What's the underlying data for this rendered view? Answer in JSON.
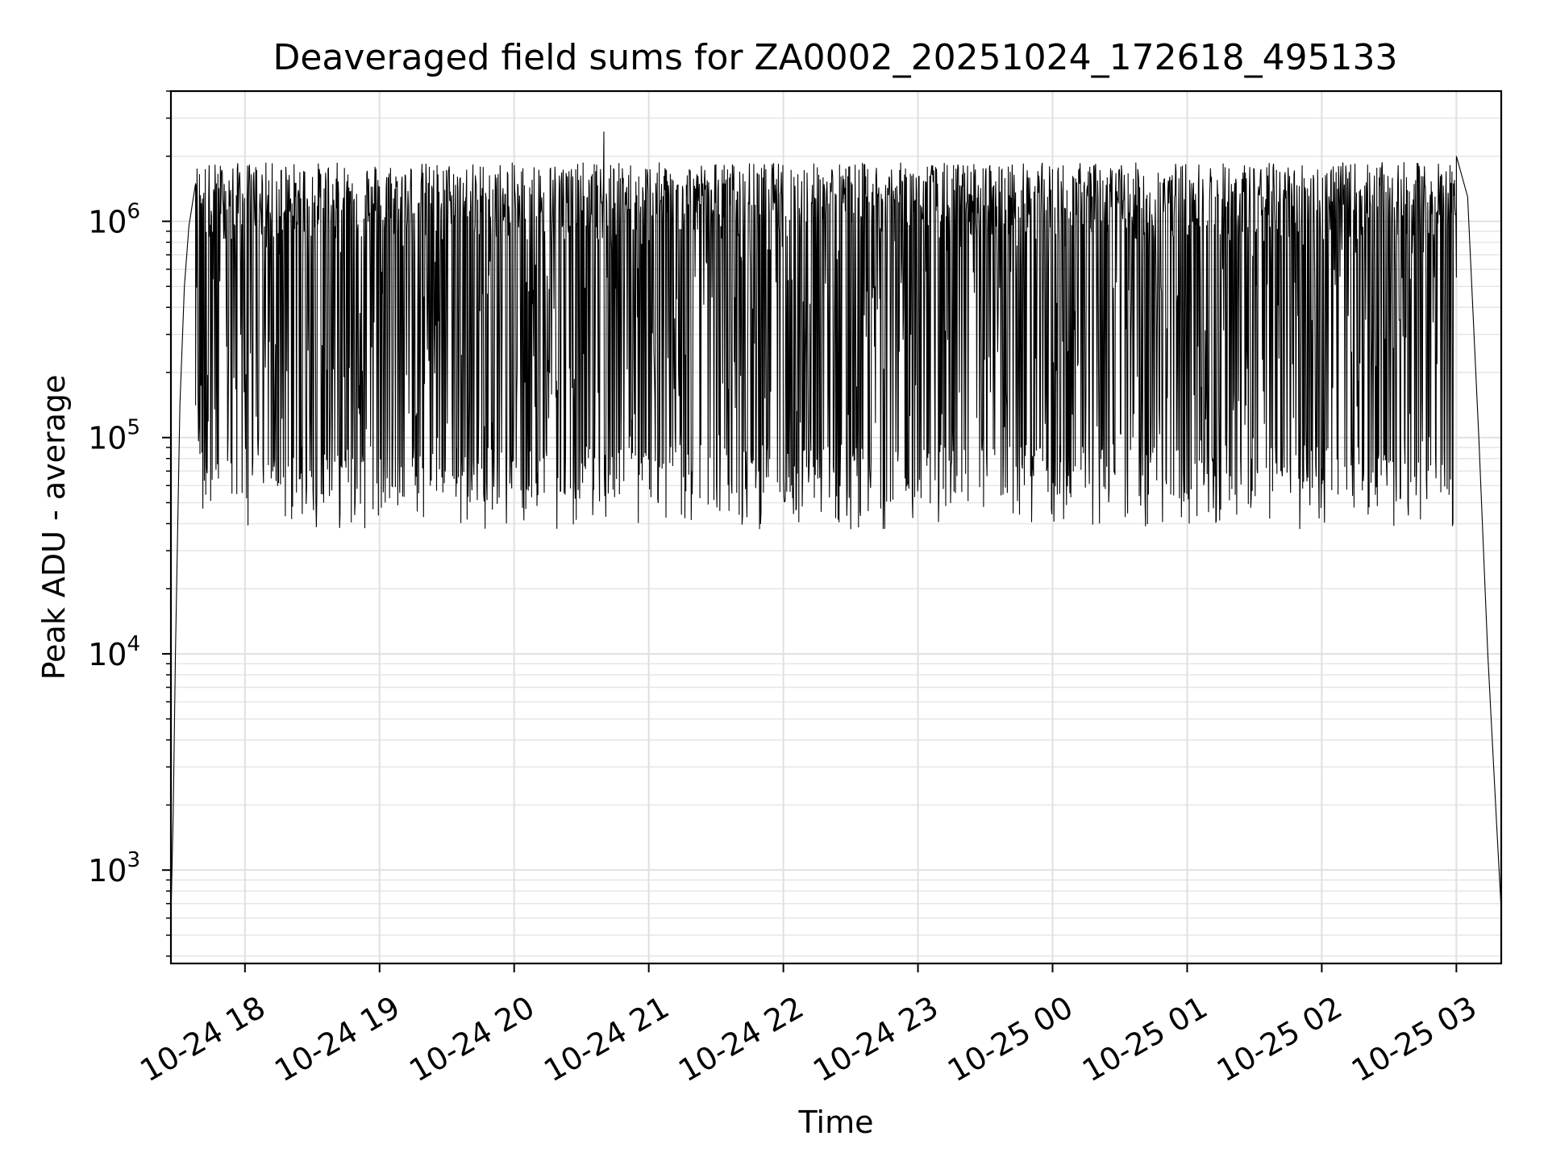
{
  "chart_data": {
    "type": "line",
    "title": "Deaveraged field sums for ZA0002_20251024_172618_495133",
    "xlabel": "Time",
    "ylabel": "Peak ADU - average",
    "yscale": "log",
    "ylim": [
      370,
      4000000
    ],
    "xlim": [
      "2025-10-24 17:27",
      "2025-10-25 03:20"
    ],
    "grid": true,
    "line_color": "#000000",
    "x_ticks": [
      {
        "label": "10-24 18",
        "value": "2025-10-24 18:00"
      },
      {
        "label": "10-24 19",
        "value": "2025-10-24 19:00"
      },
      {
        "label": "10-24 20",
        "value": "2025-10-24 20:00"
      },
      {
        "label": "10-24 21",
        "value": "2025-10-24 21:00"
      },
      {
        "label": "10-24 22",
        "value": "2025-10-24 22:00"
      },
      {
        "label": "10-24 23",
        "value": "2025-10-24 23:00"
      },
      {
        "label": "10-25 00",
        "value": "2025-10-25 00:00"
      },
      {
        "label": "10-25 01",
        "value": "2025-10-25 01:00"
      },
      {
        "label": "10-25 02",
        "value": "2025-10-25 02:00"
      },
      {
        "label": "10-25 03",
        "value": "2025-10-25 03:00"
      }
    ],
    "y_ticks": [
      {
        "base": "10",
        "exp": "3",
        "value": 1000
      },
      {
        "base": "10",
        "exp": "4",
        "value": 10000
      },
      {
        "base": "10",
        "exp": "5",
        "value": 100000
      },
      {
        "base": "10",
        "exp": "6",
        "value": 1000000
      }
    ],
    "envelope_points": [
      {
        "x": "2025-10-24 17:27",
        "y": 600
      },
      {
        "x": "2025-10-24 17:28",
        "y": 1800
      },
      {
        "x": "2025-10-24 17:29",
        "y": 10000
      },
      {
        "x": "2025-10-24 17:31",
        "y": 140000
      },
      {
        "x": "2025-10-24 17:33",
        "y": 500000
      },
      {
        "x": "2025-10-24 17:35",
        "y": 950000
      },
      {
        "x": "2025-10-24 17:38",
        "y": 1500000
      },
      {
        "x": "2025-10-24 20:40",
        "y": 2600000
      },
      {
        "x": "2025-10-25 03:00",
        "y": 2000000
      },
      {
        "x": "2025-10-25 03:05",
        "y": 1300000
      },
      {
        "x": "2025-10-25 03:10",
        "y": 100000
      },
      {
        "x": "2025-10-25 03:14",
        "y": 10000
      },
      {
        "x": "2025-10-25 03:18",
        "y": 1600
      },
      {
        "x": "2025-10-25 03:20",
        "y": 650
      }
    ],
    "band": {
      "upper_typical": 1500000,
      "lower_typical": 50000,
      "minimum": 33000
    }
  }
}
